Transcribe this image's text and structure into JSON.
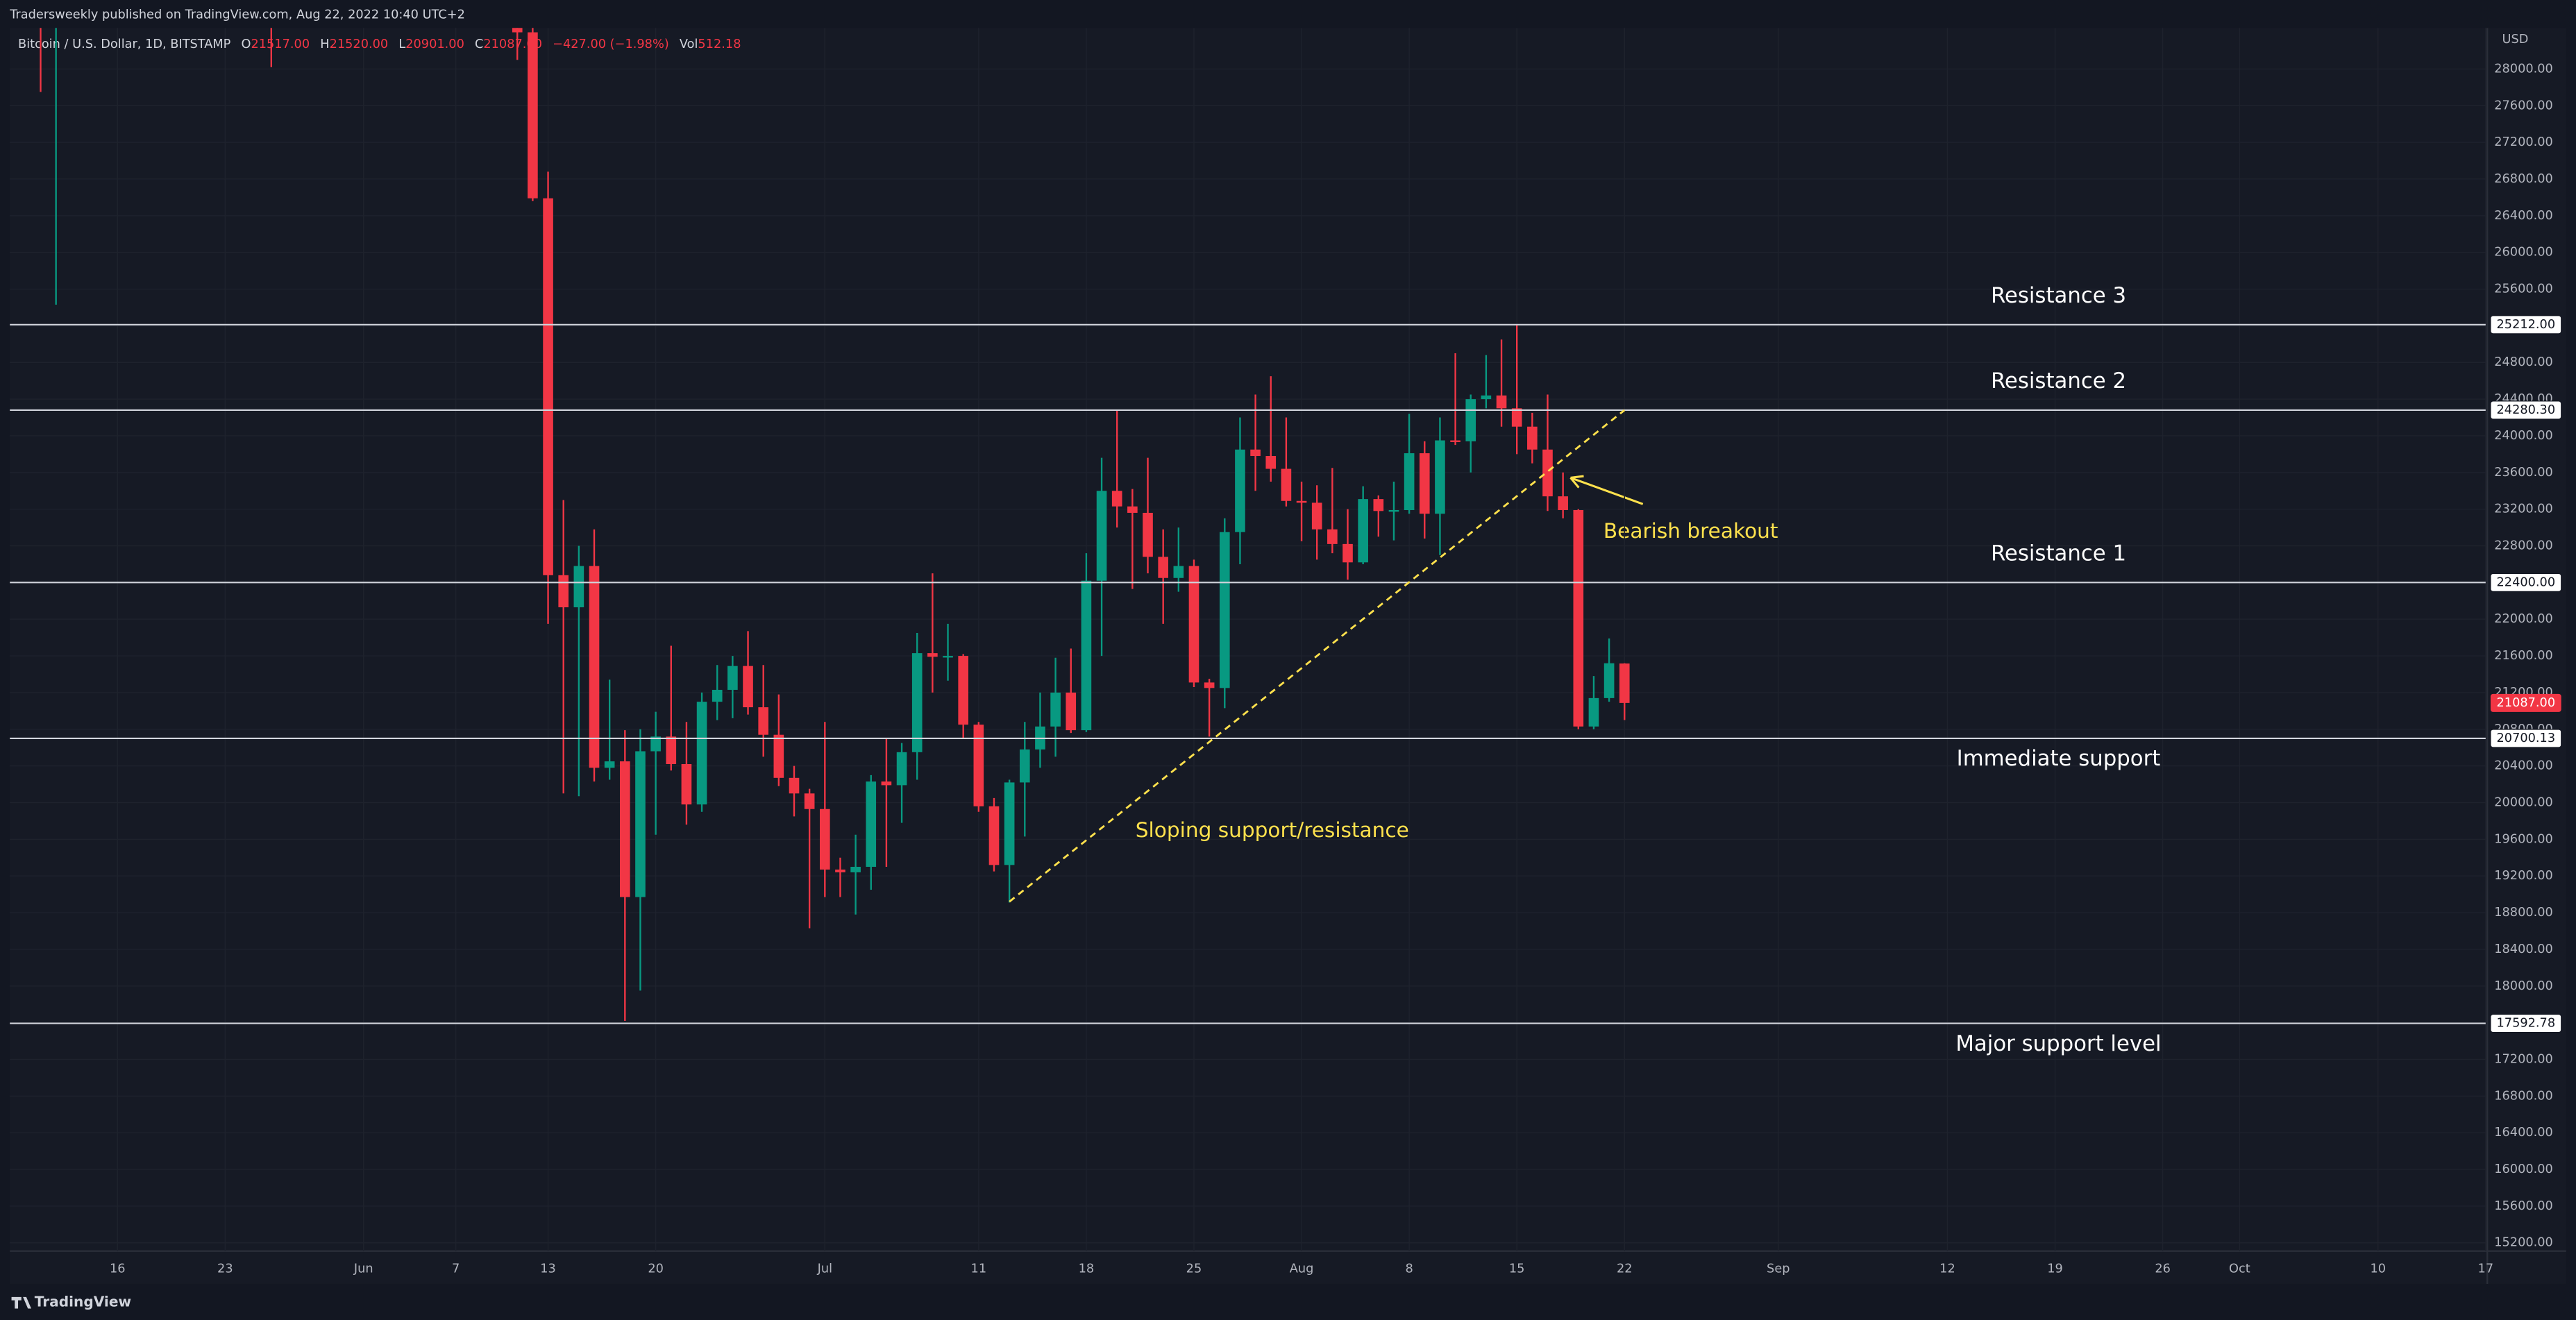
{
  "page": {
    "header": "Tradersweekly published on TradingView.com, Aug 22, 2022 10:40 UTC+2",
    "footer": "TradingView"
  },
  "chart_data": {
    "type": "candlestick",
    "legend": {
      "symbol": "Bitcoin / U.S. Dollar, 1D, BITSTAMP",
      "items": [
        {
          "key": "O",
          "value": "21517.00"
        },
        {
          "key": "H",
          "value": "21520.00"
        },
        {
          "key": "L",
          "value": "20901.00"
        },
        {
          "key": "C",
          "value": "21087.00"
        },
        {
          "key": "",
          "value": "−427.00 (−1.98%)"
        },
        {
          "key": "Vol",
          "value": "512.18"
        }
      ]
    },
    "currency": "USD",
    "up_color": "#089981",
    "down_color": "#f23645",
    "grid": true,
    "xlim": [
      "2022-05-09",
      "2022-10-17"
    ],
    "ylim": [
      15110,
      28448
    ],
    "xticks": [
      {
        "value": "2022-05-16",
        "label": "16"
      },
      {
        "value": "2022-05-23",
        "label": "23"
      },
      {
        "value": "2022-06-01",
        "label": "Jun"
      },
      {
        "value": "2022-06-07",
        "label": "7"
      },
      {
        "value": "2022-06-13",
        "label": "13"
      },
      {
        "value": "2022-06-20",
        "label": "20"
      },
      {
        "value": "2022-07-01",
        "label": "Jul"
      },
      {
        "value": "2022-07-11",
        "label": "11"
      },
      {
        "value": "2022-07-18",
        "label": "18"
      },
      {
        "value": "2022-07-25",
        "label": "25"
      },
      {
        "value": "2022-08-01",
        "label": "Aug"
      },
      {
        "value": "2022-08-08",
        "label": "8"
      },
      {
        "value": "2022-08-15",
        "label": "15"
      },
      {
        "value": "2022-08-22",
        "label": "22"
      },
      {
        "value": "2022-09-01",
        "label": "Sep"
      },
      {
        "value": "2022-09-12",
        "label": "12"
      },
      {
        "value": "2022-09-19",
        "label": "19"
      },
      {
        "value": "2022-09-26",
        "label": "26"
      },
      {
        "value": "2022-10-01",
        "label": "Oct"
      },
      {
        "value": "2022-10-10",
        "label": "10"
      },
      {
        "value": "2022-10-17",
        "label": "17"
      }
    ],
    "yticks": [
      {
        "value": 15200,
        "label": "15200.00"
      },
      {
        "value": 15600,
        "label": "15600.00"
      },
      {
        "value": 16000,
        "label": "16000.00"
      },
      {
        "value": 16400,
        "label": "16400.00"
      },
      {
        "value": 16800,
        "label": "16800.00"
      },
      {
        "value": 17200,
        "label": "17200.00"
      },
      {
        "value": 17600,
        "label": "17600.00"
      },
      {
        "value": 18000,
        "label": "18000.00"
      },
      {
        "value": 18400,
        "label": "18400.00"
      },
      {
        "value": 18800,
        "label": "18800.00"
      },
      {
        "value": 19200,
        "label": "19200.00"
      },
      {
        "value": 19600,
        "label": "19600.00"
      },
      {
        "value": 20000,
        "label": "20000.00"
      },
      {
        "value": 20400,
        "label": "20400.00"
      },
      {
        "value": 20800,
        "label": "20800.00"
      },
      {
        "value": 21200,
        "label": "21200.00"
      },
      {
        "value": 21600,
        "label": "21600.00"
      },
      {
        "value": 22000,
        "label": "22000.00"
      },
      {
        "value": 22400,
        "label": "22400.00"
      },
      {
        "value": 22800,
        "label": "22800.00"
      },
      {
        "value": 23200,
        "label": "23200.00"
      },
      {
        "value": 23600,
        "label": "23600.00"
      },
      {
        "value": 24000,
        "label": "24000.00"
      },
      {
        "value": 24400,
        "label": "24400.00"
      },
      {
        "value": 24800,
        "label": "24800.00"
      },
      {
        "value": 25200,
        "label": "25200.00"
      },
      {
        "value": 25600,
        "label": "25600.00"
      },
      {
        "value": 26000,
        "label": "26000.00"
      },
      {
        "value": 26400,
        "label": "26400.00"
      },
      {
        "value": 26800,
        "label": "26800.00"
      },
      {
        "value": 27200,
        "label": "27200.00"
      },
      {
        "value": 27600,
        "label": "27600.00"
      },
      {
        "value": 28000,
        "label": "28000.00"
      }
    ],
    "candles": [
      {
        "date": "2022-05-11",
        "open": 31000,
        "high": 32150,
        "low": 27750,
        "close": 29050
      },
      {
        "date": "2022-05-12",
        "open": 29050,
        "high": 30000,
        "low": 25430,
        "close": 29050
      },
      {
        "date": "2022-05-26",
        "open": 29550,
        "high": 29850,
        "low": 28020,
        "close": 29200
      },
      {
        "date": "2022-06-11",
        "open": 29080,
        "high": 29440,
        "low": 28100,
        "close": 28400
      },
      {
        "date": "2022-06-12",
        "open": 28400,
        "high": 28550,
        "low": 26560,
        "close": 26590
      },
      {
        "date": "2022-06-13",
        "open": 26590,
        "high": 26880,
        "low": 21950,
        "close": 22480
      },
      {
        "date": "2022-06-14",
        "open": 22480,
        "high": 23300,
        "low": 20100,
        "close": 22130
      },
      {
        "date": "2022-06-15",
        "open": 22130,
        "high": 22800,
        "low": 20070,
        "close": 22580
      },
      {
        "date": "2022-06-16",
        "open": 22580,
        "high": 22980,
        "low": 20230,
        "close": 20380
      },
      {
        "date": "2022-06-17",
        "open": 20380,
        "high": 21340,
        "low": 20250,
        "close": 20450
      },
      {
        "date": "2022-06-18",
        "open": 20450,
        "high": 20790,
        "low": 17620,
        "close": 18970
      },
      {
        "date": "2022-06-19",
        "open": 18970,
        "high": 20800,
        "low": 17950,
        "close": 20560
      },
      {
        "date": "2022-06-20",
        "open": 20560,
        "high": 20990,
        "low": 19650,
        "close": 20720
      },
      {
        "date": "2022-06-21",
        "open": 20720,
        "high": 21710,
        "low": 20350,
        "close": 20420
      },
      {
        "date": "2022-06-22",
        "open": 20420,
        "high": 20880,
        "low": 19760,
        "close": 19980
      },
      {
        "date": "2022-06-23",
        "open": 19980,
        "high": 21200,
        "low": 19900,
        "close": 21100
      },
      {
        "date": "2022-06-24",
        "open": 21100,
        "high": 21500,
        "low": 20900,
        "close": 21230
      },
      {
        "date": "2022-06-25",
        "open": 21230,
        "high": 21600,
        "low": 20920,
        "close": 21490
      },
      {
        "date": "2022-06-26",
        "open": 21490,
        "high": 21870,
        "low": 20960,
        "close": 21040
      },
      {
        "date": "2022-06-27",
        "open": 21040,
        "high": 21500,
        "low": 20500,
        "close": 20740
      },
      {
        "date": "2022-06-28",
        "open": 20740,
        "high": 21180,
        "low": 20180,
        "close": 20270
      },
      {
        "date": "2022-06-29",
        "open": 20270,
        "high": 20400,
        "low": 19850,
        "close": 20100
      },
      {
        "date": "2022-06-30",
        "open": 20100,
        "high": 20150,
        "low": 18630,
        "close": 19930
      },
      {
        "date": "2022-07-01",
        "open": 19930,
        "high": 20880,
        "low": 18970,
        "close": 19270
      },
      {
        "date": "2022-07-02",
        "open": 19270,
        "high": 19400,
        "low": 18970,
        "close": 19240
      },
      {
        "date": "2022-07-03",
        "open": 19240,
        "high": 19650,
        "low": 18780,
        "close": 19300
      },
      {
        "date": "2022-07-04",
        "open": 19300,
        "high": 20300,
        "low": 19050,
        "close": 20230
      },
      {
        "date": "2022-07-05",
        "open": 20230,
        "high": 20700,
        "low": 19300,
        "close": 20190
      },
      {
        "date": "2022-07-06",
        "open": 20190,
        "high": 20650,
        "low": 19780,
        "close": 20550
      },
      {
        "date": "2022-07-07",
        "open": 20550,
        "high": 21850,
        "low": 20250,
        "close": 21630
      },
      {
        "date": "2022-07-08",
        "open": 21630,
        "high": 22500,
        "low": 21200,
        "close": 21590
      },
      {
        "date": "2022-07-09",
        "open": 21590,
        "high": 21950,
        "low": 21330,
        "close": 21600
      },
      {
        "date": "2022-07-10",
        "open": 21600,
        "high": 21620,
        "low": 20700,
        "close": 20850
      },
      {
        "date": "2022-07-11",
        "open": 20850,
        "high": 20880,
        "low": 19900,
        "close": 19960
      },
      {
        "date": "2022-07-12",
        "open": 19960,
        "high": 20050,
        "low": 19250,
        "close": 19320
      },
      {
        "date": "2022-07-13",
        "open": 19320,
        "high": 20250,
        "low": 18910,
        "close": 20220
      },
      {
        "date": "2022-07-14",
        "open": 20220,
        "high": 20880,
        "low": 19630,
        "close": 20580
      },
      {
        "date": "2022-07-15",
        "open": 20580,
        "high": 21200,
        "low": 20380,
        "close": 20830
      },
      {
        "date": "2022-07-16",
        "open": 20830,
        "high": 21580,
        "low": 20500,
        "close": 21200
      },
      {
        "date": "2022-07-17",
        "open": 21200,
        "high": 21680,
        "low": 20760,
        "close": 20790
      },
      {
        "date": "2022-07-18",
        "open": 20790,
        "high": 22720,
        "low": 20770,
        "close": 22420
      },
      {
        "date": "2022-07-19",
        "open": 22420,
        "high": 23760,
        "low": 21600,
        "close": 23400
      },
      {
        "date": "2022-07-20",
        "open": 23400,
        "high": 24280,
        "low": 23000,
        "close": 23230
      },
      {
        "date": "2022-07-21",
        "open": 23230,
        "high": 23420,
        "low": 22330,
        "close": 23160
      },
      {
        "date": "2022-07-22",
        "open": 23160,
        "high": 23760,
        "low": 22500,
        "close": 22680
      },
      {
        "date": "2022-07-23",
        "open": 22680,
        "high": 22980,
        "low": 21950,
        "close": 22450
      },
      {
        "date": "2022-07-24",
        "open": 22450,
        "high": 23000,
        "low": 22300,
        "close": 22580
      },
      {
        "date": "2022-07-25",
        "open": 22580,
        "high": 22650,
        "low": 21260,
        "close": 21310
      },
      {
        "date": "2022-07-26",
        "open": 21310,
        "high": 21350,
        "low": 20720,
        "close": 21250
      },
      {
        "date": "2022-07-27",
        "open": 21250,
        "high": 23100,
        "low": 21030,
        "close": 22950
      },
      {
        "date": "2022-07-28",
        "open": 22950,
        "high": 24200,
        "low": 22600,
        "close": 23850
      },
      {
        "date": "2022-07-29",
        "open": 23850,
        "high": 24450,
        "low": 23400,
        "close": 23780
      },
      {
        "date": "2022-07-30",
        "open": 23780,
        "high": 24650,
        "low": 23500,
        "close": 23640
      },
      {
        "date": "2022-07-31",
        "open": 23640,
        "high": 24200,
        "low": 23230,
        "close": 23290
      },
      {
        "date": "2022-08-01",
        "open": 23290,
        "high": 23500,
        "low": 22850,
        "close": 23270
      },
      {
        "date": "2022-08-02",
        "open": 23270,
        "high": 23460,
        "low": 22650,
        "close": 22980
      },
      {
        "date": "2022-08-03",
        "open": 22980,
        "high": 23650,
        "low": 22720,
        "close": 22820
      },
      {
        "date": "2022-08-04",
        "open": 22820,
        "high": 23200,
        "low": 22430,
        "close": 22620
      },
      {
        "date": "2022-08-05",
        "open": 22620,
        "high": 23450,
        "low": 22600,
        "close": 23310
      },
      {
        "date": "2022-08-06",
        "open": 23310,
        "high": 23350,
        "low": 22900,
        "close": 23180
      },
      {
        "date": "2022-08-07",
        "open": 23180,
        "high": 23500,
        "low": 22860,
        "close": 23190
      },
      {
        "date": "2022-08-08",
        "open": 23190,
        "high": 24240,
        "low": 23150,
        "close": 23810
      },
      {
        "date": "2022-08-09",
        "open": 23810,
        "high": 23940,
        "low": 22880,
        "close": 23150
      },
      {
        "date": "2022-08-10",
        "open": 23150,
        "high": 24200,
        "low": 22700,
        "close": 23950
      },
      {
        "date": "2022-08-11",
        "open": 23950,
        "high": 24900,
        "low": 23900,
        "close": 23940
      },
      {
        "date": "2022-08-12",
        "open": 23940,
        "high": 24450,
        "low": 23600,
        "close": 24400
      },
      {
        "date": "2022-08-13",
        "open": 24400,
        "high": 24880,
        "low": 24300,
        "close": 24440
      },
      {
        "date": "2022-08-14",
        "open": 24440,
        "high": 25050,
        "low": 24100,
        "close": 24300
      },
      {
        "date": "2022-08-15",
        "open": 24300,
        "high": 25210,
        "low": 23800,
        "close": 24100
      },
      {
        "date": "2022-08-16",
        "open": 24100,
        "high": 24250,
        "low": 23700,
        "close": 23850
      },
      {
        "date": "2022-08-17",
        "open": 23850,
        "high": 24450,
        "low": 23180,
        "close": 23340
      },
      {
        "date": "2022-08-18",
        "open": 23340,
        "high": 23600,
        "low": 23100,
        "close": 23190
      },
      {
        "date": "2022-08-19",
        "open": 23190,
        "high": 23200,
        "low": 20800,
        "close": 20830
      },
      {
        "date": "2022-08-20",
        "open": 20830,
        "high": 21380,
        "low": 20800,
        "close": 21140
      },
      {
        "date": "2022-08-21",
        "open": 21140,
        "high": 21790,
        "low": 21100,
        "close": 21520
      },
      {
        "date": "2022-08-22",
        "open": 21517,
        "high": 21520,
        "low": 20901,
        "close": 21087
      }
    ],
    "levels": [
      {
        "value": 25212,
        "label": "25212.00",
        "name": "Resistance 3"
      },
      {
        "value": 24280.3,
        "label": "24280.30",
        "name": "Resistance 2"
      },
      {
        "value": 22400,
        "label": "22400.00",
        "name": "Resistance 1"
      },
      {
        "value": 20700.13,
        "label": "20700.13",
        "name": "Immediate support"
      },
      {
        "value": 17592.78,
        "label": "17592.78",
        "name": "Major support level"
      }
    ],
    "last": {
      "value": 21087,
      "label": "21087.00"
    },
    "trendline": {
      "points": [
        {
          "x": "2022-07-13",
          "y": 18920
        },
        {
          "x": "2022-08-22",
          "y": 24280
        }
      ],
      "label": "Sloping support/resistance"
    },
    "breakout": {
      "text": "Bearish breakout"
    }
  }
}
